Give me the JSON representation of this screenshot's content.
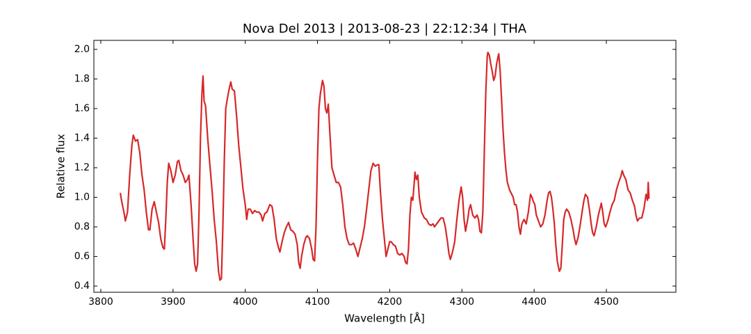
{
  "chart_data": {
    "type": "line",
    "title": "Nova Del 2013 | 2013-08-23 | 22:12:34 | THA",
    "x_label": "Wavelength [Å]",
    "y_label": "Relative flux",
    "xlim": [
      3790.4,
      4596.3
    ],
    "ylim": [
      0.358,
      2.061
    ],
    "xticks": [
      3800,
      3900,
      4000,
      4100,
      4200,
      4300,
      4400,
      4500
    ],
    "yticks": [
      0.4,
      0.6,
      0.8,
      {
        "value": 1,
        "label": "1.0"
      },
      1.2,
      1.4,
      1.6,
      1.8,
      {
        "value": 2,
        "label": "2.0"
      }
    ],
    "color": "#d62728",
    "x": [
      3827,
      3829,
      3832,
      3834,
      3837,
      3840,
      3843,
      3845,
      3848,
      3851,
      3854,
      3857,
      3860,
      3863,
      3866,
      3868,
      3871,
      3874,
      3877,
      3880,
      3883,
      3886,
      3888,
      3890,
      3892,
      3894,
      3897,
      3900,
      3903,
      3906,
      3908,
      3911,
      3914,
      3917,
      3920,
      3922,
      3925,
      3928,
      3930,
      3932,
      3934,
      3936,
      3938,
      3940,
      3941.5,
      3943,
      3945,
      3948,
      3951,
      3954,
      3957,
      3960,
      3963,
      3965,
      3967,
      3969,
      3971,
      3973,
      3975,
      3978,
      3980,
      3982,
      3985,
      3988,
      3991,
      3994,
      3997,
      4000,
      4002,
      4004,
      4007,
      4010,
      4013,
      4016,
      4019,
      4022,
      4024,
      4027,
      4030,
      4034,
      4037,
      4040,
      4043,
      4046,
      4048,
      4051,
      4054,
      4057,
      4060,
      4063,
      4066,
      4069,
      4072,
      4074,
      4076,
      4078,
      4081,
      4084,
      4086,
      4089,
      4092,
      4094,
      4096,
      4098,
      4100,
      4102,
      4104,
      4107,
      4109,
      4111,
      4113,
      4115,
      4117,
      4120,
      4123,
      4126,
      4129,
      4132,
      4135,
      4138,
      4141,
      4144,
      4147,
      4150,
      4153,
      4156,
      4159,
      4162,
      4165,
      4168,
      4171,
      4174,
      4177,
      4180,
      4183,
      4185,
      4187,
      4190,
      4193,
      4195,
      4198,
      4200,
      4202,
      4205,
      4208,
      4211,
      4214,
      4217,
      4220,
      4222,
      4224,
      4226,
      4228,
      4230,
      4232,
      4234,
      4235,
      4237,
      4239,
      4241,
      4244,
      4246,
      4248,
      4251,
      4254,
      4257,
      4260,
      4262,
      4265,
      4268,
      4271,
      4274,
      4277,
      4280,
      4282,
      4284,
      4287,
      4290,
      4293,
      4296,
      4299,
      4301,
      4303,
      4305,
      4308,
      4310,
      4312,
      4315,
      4318,
      4321,
      4323,
      4325,
      4327,
      4329,
      4331,
      4333,
      4335,
      4336,
      4338,
      4340,
      4342,
      4344,
      4346,
      4348,
      4350,
      4351,
      4353,
      4355,
      4357,
      4359,
      4361,
      4363,
      4366,
      4369,
      4371,
      4373,
      4375,
      4377,
      4379,
      4381,
      4383,
      4386,
      4389,
      4392,
      4395,
      4397,
      4399,
      4401,
      4403,
      4406,
      4409,
      4412,
      4415,
      4418,
      4420,
      4422,
      4424,
      4426,
      4428,
      4430,
      4432,
      4434,
      4435,
      4437,
      4439,
      4441,
      4443,
      4445,
      4448,
      4451,
      4454,
      4456,
      4458,
      4461,
      4464,
      4467,
      4469,
      4471,
      4474,
      4477,
      4479,
      4481,
      4483,
      4486,
      4489,
      4491,
      4493,
      4495,
      4497,
      4499,
      4502,
      4505,
      4508,
      4511,
      4514,
      4517,
      4520,
      4522,
      4524,
      4527,
      4530,
      4533,
      4536,
      4539,
      4541,
      4543,
      4546,
      4549,
      4552,
      4555,
      4557,
      4558,
      4559
    ],
    "values": [
      1.03,
      0.97,
      0.9,
      0.84,
      0.9,
      1.15,
      1.35,
      1.42,
      1.38,
      1.39,
      1.3,
      1.15,
      1.05,
      0.9,
      0.78,
      0.78,
      0.92,
      0.97,
      0.9,
      0.83,
      0.72,
      0.66,
      0.65,
      0.85,
      1.1,
      1.23,
      1.18,
      1.1,
      1.15,
      1.24,
      1.25,
      1.18,
      1.15,
      1.1,
      1.12,
      1.15,
      0.95,
      0.7,
      0.55,
      0.5,
      0.55,
      0.9,
      1.4,
      1.7,
      1.82,
      1.65,
      1.62,
      1.4,
      1.22,
      1.05,
      0.85,
      0.7,
      0.5,
      0.44,
      0.45,
      0.8,
      1.25,
      1.6,
      1.66,
      1.74,
      1.78,
      1.73,
      1.72,
      1.55,
      1.35,
      1.2,
      1.05,
      0.95,
      0.85,
      0.92,
      0.92,
      0.89,
      0.91,
      0.9,
      0.9,
      0.88,
      0.84,
      0.89,
      0.9,
      0.95,
      0.94,
      0.85,
      0.72,
      0.66,
      0.63,
      0.7,
      0.76,
      0.8,
      0.83,
      0.78,
      0.77,
      0.75,
      0.68,
      0.56,
      0.52,
      0.6,
      0.68,
      0.73,
      0.74,
      0.72,
      0.65,
      0.58,
      0.57,
      0.8,
      1.25,
      1.6,
      1.7,
      1.79,
      1.75,
      1.6,
      1.57,
      1.63,
      1.45,
      1.2,
      1.15,
      1.1,
      1.1,
      1.07,
      0.95,
      0.8,
      0.72,
      0.68,
      0.68,
      0.69,
      0.65,
      0.6,
      0.66,
      0.72,
      0.8,
      0.92,
      1.05,
      1.18,
      1.23,
      1.21,
      1.22,
      1.22,
      1.05,
      0.85,
      0.7,
      0.6,
      0.66,
      0.7,
      0.7,
      0.68,
      0.67,
      0.62,
      0.61,
      0.62,
      0.6,
      0.56,
      0.55,
      0.65,
      0.88,
      1.0,
      0.98,
      1.1,
      1.17,
      1.12,
      1.15,
      1.0,
      0.9,
      0.88,
      0.86,
      0.85,
      0.82,
      0.81,
      0.82,
      0.8,
      0.82,
      0.84,
      0.86,
      0.86,
      0.8,
      0.7,
      0.62,
      0.58,
      0.63,
      0.7,
      0.85,
      0.98,
      1.07,
      1.0,
      0.85,
      0.77,
      0.85,
      0.92,
      0.95,
      0.88,
      0.86,
      0.88,
      0.85,
      0.77,
      0.76,
      0.9,
      1.3,
      1.7,
      1.95,
      1.98,
      1.96,
      1.9,
      1.85,
      1.79,
      1.82,
      1.9,
      1.95,
      1.97,
      1.85,
      1.65,
      1.45,
      1.3,
      1.18,
      1.1,
      1.05,
      1.02,
      1.0,
      0.95,
      0.95,
      0.9,
      0.8,
      0.75,
      0.82,
      0.85,
      0.82,
      0.9,
      1.02,
      1.0,
      0.97,
      0.95,
      0.88,
      0.84,
      0.8,
      0.82,
      0.88,
      0.98,
      1.03,
      1.04,
      1.0,
      0.92,
      0.82,
      0.68,
      0.57,
      0.52,
      0.5,
      0.52,
      0.68,
      0.85,
      0.9,
      0.92,
      0.9,
      0.85,
      0.78,
      0.72,
      0.68,
      0.73,
      0.82,
      0.92,
      0.98,
      1.02,
      1.0,
      0.9,
      0.82,
      0.76,
      0.74,
      0.8,
      0.88,
      0.92,
      0.96,
      0.9,
      0.82,
      0.8,
      0.84,
      0.9,
      0.95,
      0.98,
      1.05,
      1.1,
      1.14,
      1.18,
      1.15,
      1.12,
      1.05,
      1.03,
      0.98,
      0.94,
      0.88,
      0.84,
      0.86,
      0.86,
      0.92,
      1.02,
      0.98,
      1.1,
      0.99
    ]
  }
}
